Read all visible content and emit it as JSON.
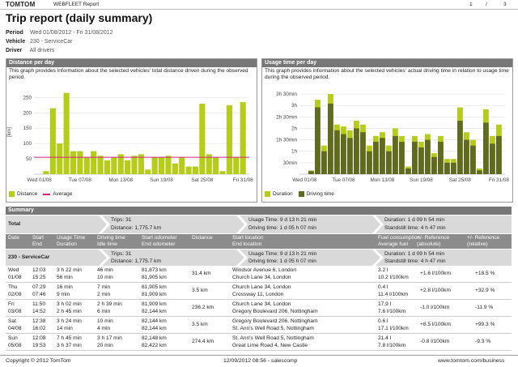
{
  "header": {
    "brand": "TOMTOM",
    "brand_sub": "WEBFLEET Report",
    "page": "1",
    "page_sep": "/",
    "pages": "3"
  },
  "title": "Trip report (daily summary)",
  "meta": [
    {
      "label": "Period",
      "value": "Wed 01/08/2012 - Fri 31/08/2012"
    },
    {
      "label": "Vehicle",
      "value": "230 - ServiceCar"
    },
    {
      "label": "Driver",
      "value": "All drivers"
    }
  ],
  "distance_panel": {
    "title": "Distance per day",
    "description": "This graph provides information about the selected vehicles' total distance driven during the observed period.",
    "legend": [
      "Distance",
      "Average"
    ]
  },
  "usage_panel": {
    "title": "Usage time per day",
    "description": "This graph provides information about the selected vehicles' actual driving time in relation to usage time during the observed period.",
    "legend": [
      "Duration",
      "Driving time"
    ]
  },
  "chart_data": [
    {
      "type": "bar",
      "ylabel": "[km]",
      "yticks": [
        50,
        100,
        150,
        200,
        250
      ],
      "ylim": [
        0,
        280
      ],
      "xticks": [
        "Wed 01/08",
        "Tue 07/08",
        "Mon 13/08",
        "Sun 19/08",
        "Sat 25/08",
        "Fri 31/08"
      ],
      "average": 55,
      "series": [
        {
          "name": "Distance",
          "values": [
            0,
            10,
            215,
            100,
            265,
            75,
            75,
            55,
            75,
            60,
            45,
            55,
            65,
            45,
            60,
            65,
            15,
            55,
            55,
            60,
            35,
            55,
            25,
            25,
            230,
            65,
            55,
            10,
            225,
            55,
            235
          ]
        }
      ]
    },
    {
      "type": "bar",
      "yticks": [
        "30min",
        "1h",
        "1h 30min",
        "2h",
        "2h 30min",
        "3h",
        "3h 30min"
      ],
      "ylim": [
        0,
        225
      ],
      "xticks": [
        "Wed 01/08",
        "Tue 07/08",
        "Mon 13/08",
        "Sun 19/08",
        "Sat 25/08",
        "Fri 31/08"
      ],
      "series": [
        {
          "name": "Duration",
          "values": [
            0,
            10,
            195,
            75,
            210,
            130,
            125,
            115,
            140,
            130,
            75,
            100,
            110,
            75,
            120,
            100,
            20,
            100,
            85,
            105,
            55,
            100,
            40,
            40,
            175,
            110,
            90,
            15,
            170,
            100,
            130
          ]
        },
        {
          "name": "Driving time",
          "values": [
            0,
            8,
            175,
            60,
            185,
            115,
            105,
            95,
            120,
            110,
            60,
            85,
            95,
            60,
            100,
            85,
            15,
            85,
            70,
            90,
            45,
            85,
            30,
            30,
            140,
            90,
            75,
            10,
            135,
            80,
            100
          ]
        }
      ]
    }
  ],
  "summary": {
    "title": "Summary",
    "total": {
      "label": "Total",
      "trips": "Trips: 31",
      "distance": "Distance: 1,775.7 km",
      "usage": "Usage Time: 9 d 13 h 21 min",
      "driving": "Driving time: 1 d 05 h 07 min",
      "duration": "Duration: 1 d 09 h 54 min",
      "standstill": "Standstill time: 4 h 47 min"
    },
    "columns": [
      [
        "Date",
        ""
      ],
      [
        "Start",
        "End"
      ],
      [
        "Usage Time",
        "Duration"
      ],
      [
        "Driving time",
        "Idle time"
      ],
      [
        "Start odometer",
        "End odometer"
      ],
      [
        "Distance",
        ""
      ],
      [
        "Start location",
        "End location"
      ],
      [
        "Fuel consumption",
        "Average fuel"
      ],
      [
        "+/- Reference",
        "(absolute)"
      ],
      [
        "+/- Reference",
        "(relative)"
      ]
    ],
    "vehicle": {
      "label": "230 - ServiceCar",
      "trips": "Trips: 31",
      "distance": "Distance: 1,775.7 km",
      "usage": "Usage Time: 9 d 13 h 21 min",
      "driving": "Driving time: 1 d 05 h 07 min",
      "duration": "Duration: 1 d 09 h 54 min",
      "standstill": "Standstill time: 4 h 47 min"
    },
    "rows": [
      {
        "d1": "Wed",
        "d2": "01/08",
        "s": "12:03",
        "e": "15:25",
        "u": "3 h 22 min",
        "du": "56 min",
        "dr": "46 min",
        "id": "10 min",
        "so": "81,873 km",
        "eo": "81,905 km",
        "dist": "31.4 km",
        "sl": "Windsor Avenue 6, London",
        "el": "Church Lane 34, London",
        "f1": "3.2 l",
        "f2": "10.2 l/100km",
        "ra": "+1.6 l/100km",
        "rr": "+18.5 %"
      },
      {
        "d1": "Thu",
        "d2": "02/08",
        "s": "07:29",
        "e": "07:46",
        "u": "16 min",
        "du": "9 min",
        "dr": "7 min",
        "id": "2 min",
        "so": "81,905 km",
        "eo": "81,909 km",
        "dist": "3.5 km",
        "sl": "Church Lane 34, London",
        "el": "Crossway 11, London",
        "f1": "0.4 l",
        "f2": "11.4 l/100km",
        "ra": "+2.8 l/100km",
        "rr": "+32.9 %"
      },
      {
        "d1": "Fri",
        "d2": "03/08",
        "s": "11:50",
        "e": "14:52",
        "u": "3 h 02 min",
        "du": "2 h 45 min",
        "dr": "2 h 39 min",
        "id": "6 min",
        "so": "81,909 km",
        "eo": "82,144 km",
        "dist": "236.2 km",
        "sl": "Church Lane 34, London",
        "el": "Gregory Boulevard 206, Nottingham",
        "f1": "17.9 l",
        "f2": "7.6 l/100km",
        "ra": "-1.0 l/100km",
        "rr": "-11.9 %"
      },
      {
        "d1": "Sat",
        "d2": "04/08",
        "s": "12:38",
        "e": "16:02",
        "u": "3 h 24 min",
        "du": "14 min",
        "dr": "10 min",
        "id": "4 min",
        "so": "82,144 km",
        "eo": "82,144 km",
        "dist": "3.5 km",
        "sl": "Gregory Boulevard 206, Nottingham",
        "el": "St. Ann's Well Road 5, Nottingham",
        "f1": "0.6 l",
        "f2": "17.1 l/100km",
        "ra": "+8.5 l/100km",
        "rr": "+99.3 %"
      },
      {
        "d1": "Sun",
        "d2": "05/08",
        "s": "12:08",
        "e": "19:53",
        "u": "7 h 45 min",
        "du": "3 h 37 min",
        "dr": "3 h 17 min",
        "id": "20 min",
        "so": "82,148 km",
        "eo": "82,422 km",
        "dist": "274.4 km",
        "sl": "St. Ann's Well Road 5, Nottingham",
        "el": "Great Lime Road 4, New Castle",
        "f1": "21.4 l",
        "f2": "7.8 l/100km",
        "ra": "-0.8 l/100km",
        "rr": "-9.3 %"
      }
    ]
  },
  "footer": {
    "copyright": "Copyright © 2012 TomTom",
    "generated": "12/09/2012 08:56 - salescomp",
    "url": "www.tomtom.com/business"
  },
  "colors": {
    "lime": "#b5cc18",
    "olive": "#5f6b1e",
    "average": "#d0257a",
    "band": "#d9d9d9",
    "header": "#777777"
  }
}
